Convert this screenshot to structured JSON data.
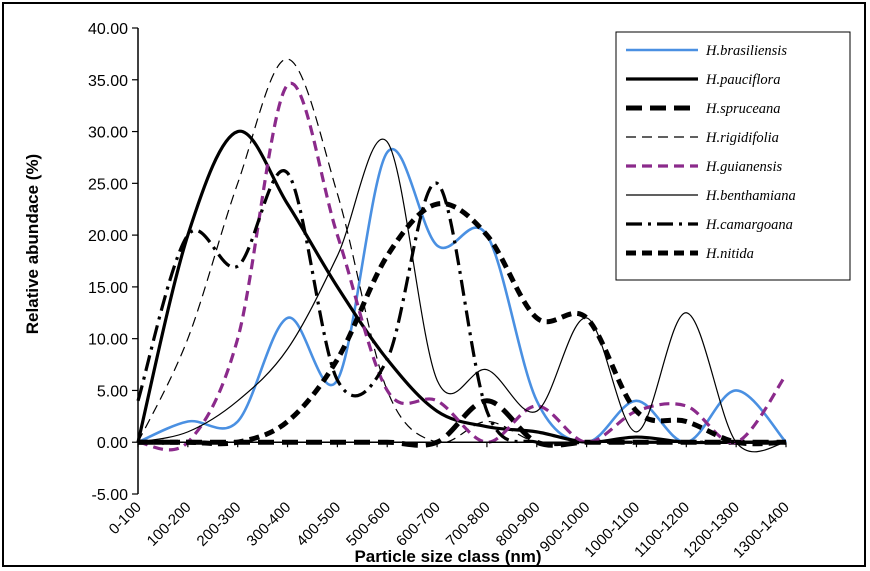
{
  "chart_data": {
    "type": "line",
    "xlabel": "Particle size class (nm)",
    "ylabel": "Relative abundace (%)",
    "ylim": [
      -5,
      40
    ],
    "ytick_step": 5,
    "ytick_labels": [
      "-5.00",
      "0.00",
      "5.00",
      "10.00",
      "15.00",
      "20.00",
      "25.00",
      "30.00",
      "35.00",
      "40.00"
    ],
    "grid": false,
    "legend_position": "top-right",
    "categories": [
      "0-100",
      "100-200",
      "200-300",
      "300-400",
      "400-500",
      "500-600",
      "600-700",
      "700-800",
      "800-900",
      "900-1000",
      "1000-1100",
      "1100-1200",
      "1200-1300",
      "1300-1400"
    ],
    "series": [
      {
        "name": "H.brasiliensis",
        "color": "#4a90e2",
        "style": "solid",
        "width": 2.6,
        "values": [
          0,
          2,
          2,
          12,
          6,
          28,
          19,
          20,
          4,
          0,
          4,
          0,
          5,
          0
        ]
      },
      {
        "name": "H.pauciflora",
        "color": "#000000",
        "style": "solid",
        "width": 3.2,
        "values": [
          0,
          20,
          30,
          23,
          15,
          8,
          3,
          1.5,
          1,
          0,
          0.5,
          0,
          0,
          0
        ]
      },
      {
        "name": "H.spruceana",
        "color": "#000000",
        "style": "longdash",
        "width": 5,
        "values": [
          0,
          0,
          0,
          0,
          0,
          0,
          0,
          4,
          0,
          0,
          0,
          0,
          0,
          0
        ]
      },
      {
        "name": "H.rigidifolia",
        "color": "#000000",
        "style": "dash",
        "width": 1.2,
        "values": [
          0,
          10,
          25,
          37,
          24,
          5,
          0,
          2,
          0,
          0,
          0,
          0,
          0,
          0
        ]
      },
      {
        "name": "H.guianensis",
        "color": "#8b2a8b",
        "style": "dash",
        "width": 3.2,
        "values": [
          0,
          0,
          10,
          34.5,
          20,
          5,
          4,
          0,
          3.5,
          0,
          3,
          3.5,
          0,
          6.5
        ]
      },
      {
        "name": "H.benthamiana",
        "color": "#000000",
        "style": "solid",
        "width": 1.2,
        "values": [
          0,
          1,
          4,
          9,
          18,
          29,
          6,
          7,
          3,
          12,
          1,
          12.5,
          0,
          0
        ]
      },
      {
        "name": "H.camargoana",
        "color": "#000000",
        "style": "dashdot",
        "width": 3.2,
        "values": [
          4,
          20,
          17,
          26,
          6,
          8,
          25,
          3,
          0,
          0,
          0,
          0,
          0,
          0
        ]
      },
      {
        "name": "H.nitida",
        "color": "#000000",
        "style": "dash",
        "width": 5,
        "values": [
          0,
          0,
          0,
          2,
          8,
          18,
          23,
          20,
          12,
          12,
          3,
          2,
          0,
          0
        ]
      }
    ]
  }
}
